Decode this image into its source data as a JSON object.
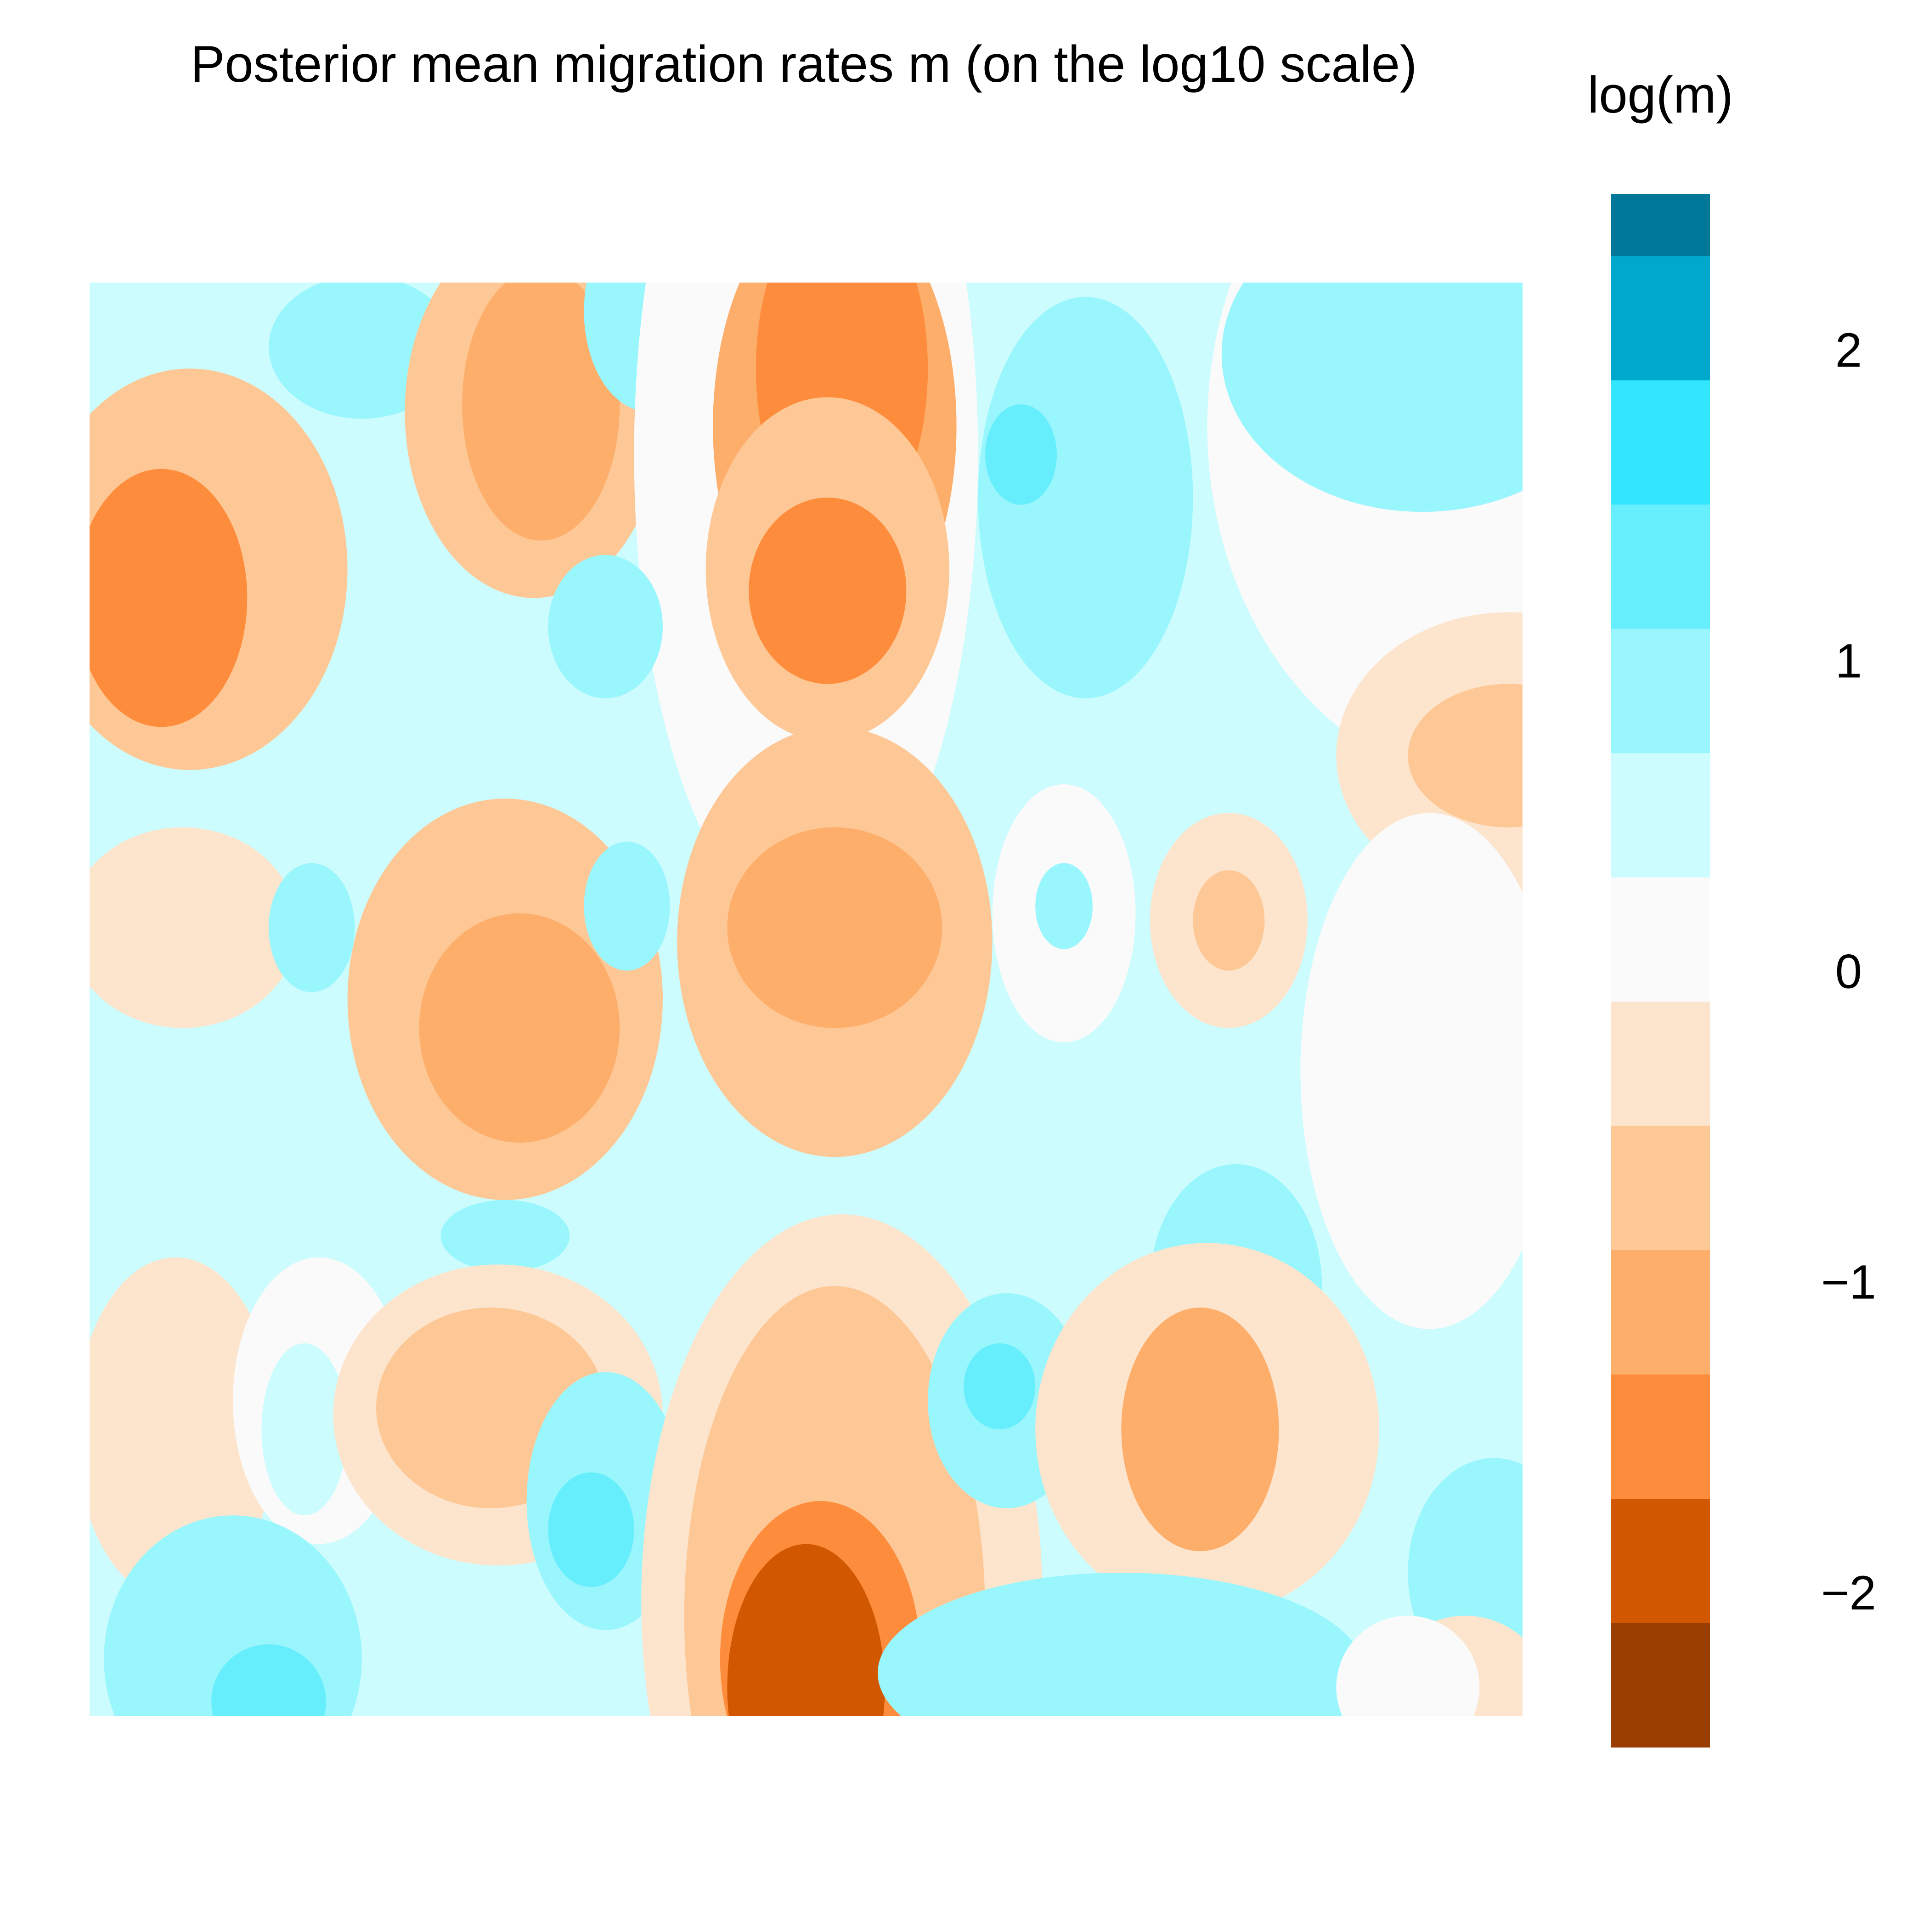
{
  "chart_data": {
    "type": "heatmap",
    "title": "Posterior mean migration rates m (on the log10 scale)",
    "colorbar": {
      "title": "log(m)",
      "ticks": [
        "−2",
        "−1",
        "0",
        "1",
        "2"
      ],
      "tick_values": [
        -2,
        -1,
        0,
        1,
        2
      ],
      "range": [
        -2.5,
        2.5
      ],
      "levels": [
        {
          "min": 2.3,
          "max": 2.5,
          "color": "#00789A"
        },
        {
          "min": 1.9,
          "max": 2.3,
          "color": "#00A8CC"
        },
        {
          "min": 1.5,
          "max": 1.9,
          "color": "#33E6FF"
        },
        {
          "min": 1.1,
          "max": 1.5,
          "color": "#66EEFC"
        },
        {
          "min": 0.7,
          "max": 1.1,
          "color": "#99F6FD"
        },
        {
          "min": 0.3,
          "max": 0.7,
          "color": "#CCFCFD"
        },
        {
          "min": -0.1,
          "max": 0.3,
          "color": "#FAFAFA"
        },
        {
          "min": -0.5,
          "max": -0.1,
          "color": "#FDE4CC"
        },
        {
          "min": -0.9,
          "max": -0.5,
          "color": "#FDC896"
        },
        {
          "min": -1.3,
          "max": -0.9,
          "color": "#FDAE6B"
        },
        {
          "min": -1.7,
          "max": -1.3,
          "color": "#FD8D3C"
        },
        {
          "min": -2.1,
          "max": -1.7,
          "color": "#D15800"
        },
        {
          "min": -2.5,
          "max": -2.1,
          "color": "#9A3D00"
        }
      ]
    },
    "grid": false,
    "legend": "right",
    "background_level_color": "#CCFCFD",
    "features": [
      {
        "cx": 0.19,
        "cy": 0.045,
        "rx": 0.065,
        "ry": 0.05,
        "value": 0.9
      },
      {
        "cx": 0.07,
        "cy": 0.2,
        "rx": 0.11,
        "ry": 0.14,
        "value": -0.9
      },
      {
        "cx": 0.05,
        "cy": 0.22,
        "rx": 0.06,
        "ry": 0.09,
        "value": -1.4
      },
      {
        "cx": 0.31,
        "cy": 0.09,
        "rx": 0.09,
        "ry": 0.13,
        "value": -0.9
      },
      {
        "cx": 0.315,
        "cy": 0.085,
        "rx": 0.055,
        "ry": 0.095,
        "value": -1.3
      },
      {
        "cx": 0.39,
        "cy": 0.02,
        "rx": 0.045,
        "ry": 0.07,
        "value": 0.9
      },
      {
        "cx": 0.5,
        "cy": 0.12,
        "rx": 0.12,
        "ry": 0.33,
        "value": 0.0
      },
      {
        "cx": 0.52,
        "cy": 0.1,
        "rx": 0.085,
        "ry": 0.16,
        "value": -1.0
      },
      {
        "cx": 0.525,
        "cy": 0.06,
        "rx": 0.06,
        "ry": 0.12,
        "value": -1.6
      },
      {
        "cx": 0.515,
        "cy": 0.2,
        "rx": 0.085,
        "ry": 0.12,
        "value": -0.9
      },
      {
        "cx": 0.515,
        "cy": 0.215,
        "rx": 0.055,
        "ry": 0.065,
        "value": -1.6
      },
      {
        "cx": 0.695,
        "cy": 0.15,
        "rx": 0.075,
        "ry": 0.14,
        "value": 0.9
      },
      {
        "cx": 0.65,
        "cy": 0.12,
        "rx": 0.025,
        "ry": 0.035,
        "value": 1.3
      },
      {
        "cx": 0.36,
        "cy": 0.24,
        "rx": 0.04,
        "ry": 0.05,
        "value": 0.8
      },
      {
        "cx": 0.98,
        "cy": 0.1,
        "rx": 0.2,
        "ry": 0.25,
        "value": 0.0
      },
      {
        "cx": 0.93,
        "cy": 0.05,
        "rx": 0.14,
        "ry": 0.11,
        "value": 0.9
      },
      {
        "cx": 0.99,
        "cy": 0.33,
        "rx": 0.12,
        "ry": 0.1,
        "value": -0.5
      },
      {
        "cx": 0.99,
        "cy": 0.33,
        "rx": 0.07,
        "ry": 0.05,
        "value": -0.8
      },
      {
        "cx": 0.065,
        "cy": 0.45,
        "rx": 0.08,
        "ry": 0.07,
        "value": -0.3
      },
      {
        "cx": 0.155,
        "cy": 0.45,
        "rx": 0.03,
        "ry": 0.045,
        "value": 0.9
      },
      {
        "cx": 0.29,
        "cy": 0.5,
        "rx": 0.11,
        "ry": 0.14,
        "value": -0.9
      },
      {
        "cx": 0.3,
        "cy": 0.52,
        "rx": 0.07,
        "ry": 0.08,
        "value": -1.3
      },
      {
        "cx": 0.375,
        "cy": 0.435,
        "rx": 0.03,
        "ry": 0.045,
        "value": 0.9
      },
      {
        "cx": 0.52,
        "cy": 0.46,
        "rx": 0.11,
        "ry": 0.15,
        "value": -0.9
      },
      {
        "cx": 0.52,
        "cy": 0.45,
        "rx": 0.075,
        "ry": 0.07,
        "value": -1.2
      },
      {
        "cx": 0.68,
        "cy": 0.44,
        "rx": 0.05,
        "ry": 0.09,
        "value": 0.0
      },
      {
        "cx": 0.68,
        "cy": 0.435,
        "rx": 0.02,
        "ry": 0.03,
        "value": 0.8
      },
      {
        "cx": 0.795,
        "cy": 0.445,
        "rx": 0.055,
        "ry": 0.075,
        "value": -0.5
      },
      {
        "cx": 0.795,
        "cy": 0.445,
        "rx": 0.025,
        "ry": 0.035,
        "value": -0.8
      },
      {
        "cx": 0.935,
        "cy": 0.55,
        "rx": 0.09,
        "ry": 0.18,
        "value": 0.0
      },
      {
        "cx": 0.8,
        "cy": 0.7,
        "rx": 0.06,
        "ry": 0.085,
        "value": 0.9
      },
      {
        "cx": 0.29,
        "cy": 0.665,
        "rx": 0.045,
        "ry": 0.025,
        "value": 0.9
      },
      {
        "cx": 0.06,
        "cy": 0.8,
        "rx": 0.07,
        "ry": 0.12,
        "value": -0.3
      },
      {
        "cx": 0.16,
        "cy": 0.78,
        "rx": 0.06,
        "ry": 0.1,
        "value": 0.0
      },
      {
        "cx": 0.15,
        "cy": 0.8,
        "rx": 0.03,
        "ry": 0.06,
        "value": 0.6
      },
      {
        "cx": 0.285,
        "cy": 0.79,
        "rx": 0.115,
        "ry": 0.105,
        "value": -0.5
      },
      {
        "cx": 0.28,
        "cy": 0.785,
        "rx": 0.08,
        "ry": 0.07,
        "value": -0.8
      },
      {
        "cx": 0.36,
        "cy": 0.85,
        "rx": 0.055,
        "ry": 0.09,
        "value": 0.9
      },
      {
        "cx": 0.35,
        "cy": 0.87,
        "rx": 0.03,
        "ry": 0.04,
        "value": 1.3
      },
      {
        "cx": 0.1,
        "cy": 0.96,
        "rx": 0.09,
        "ry": 0.1,
        "value": 0.9
      },
      {
        "cx": 0.125,
        "cy": 0.99,
        "rx": 0.04,
        "ry": 0.04,
        "value": 1.3
      },
      {
        "cx": 0.525,
        "cy": 0.92,
        "rx": 0.14,
        "ry": 0.27,
        "value": -0.3
      },
      {
        "cx": 0.52,
        "cy": 0.93,
        "rx": 0.105,
        "ry": 0.23,
        "value": -0.8
      },
      {
        "cx": 0.51,
        "cy": 0.96,
        "rx": 0.07,
        "ry": 0.11,
        "value": -1.5
      },
      {
        "cx": 0.5,
        "cy": 0.98,
        "rx": 0.055,
        "ry": 0.1,
        "value": -1.9
      },
      {
        "cx": 0.64,
        "cy": 0.78,
        "rx": 0.055,
        "ry": 0.075,
        "value": 0.9
      },
      {
        "cx": 0.635,
        "cy": 0.77,
        "rx": 0.025,
        "ry": 0.03,
        "value": 1.3
      },
      {
        "cx": 0.78,
        "cy": 0.8,
        "rx": 0.12,
        "ry": 0.13,
        "value": -0.5
      },
      {
        "cx": 0.775,
        "cy": 0.8,
        "rx": 0.055,
        "ry": 0.085,
        "value": -1.1
      },
      {
        "cx": 0.72,
        "cy": 0.97,
        "rx": 0.17,
        "ry": 0.07,
        "value": 0.9
      },
      {
        "cx": 0.98,
        "cy": 0.9,
        "rx": 0.06,
        "ry": 0.08,
        "value": 0.9
      },
      {
        "cx": 0.96,
        "cy": 0.99,
        "rx": 0.06,
        "ry": 0.06,
        "value": -0.3
      },
      {
        "cx": 0.92,
        "cy": 0.98,
        "rx": 0.05,
        "ry": 0.05,
        "value": 0.0
      }
    ]
  }
}
